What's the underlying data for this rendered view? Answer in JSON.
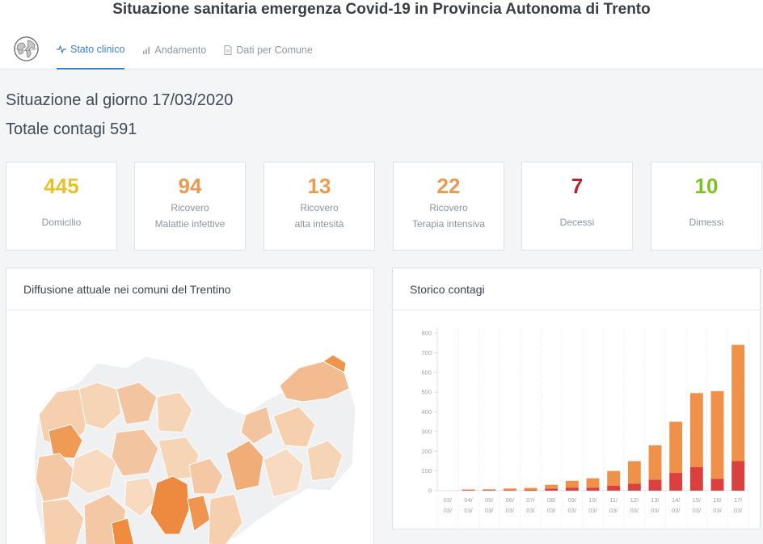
{
  "header": {
    "title": "Situazione sanitaria emergenza Covid-19 in Provincia Autonoma di Trento",
    "tabs": [
      {
        "label": "Stato clinico",
        "icon": "activity-icon",
        "active": true
      },
      {
        "label": "Andamento",
        "icon": "bar-chart-icon",
        "active": false
      },
      {
        "label": "Dati per Comune",
        "icon": "document-icon",
        "active": false
      }
    ]
  },
  "summary": {
    "date_line": "Situazione al giorno 17/03/2020",
    "total_line": "Totale contagi 591"
  },
  "cards": [
    {
      "value": "445",
      "line1": "Domicilio",
      "line2": "",
      "color": "#e8c12a"
    },
    {
      "value": "94",
      "line1": "Ricovero",
      "line2": "Malattie infettive",
      "color": "#eb9a4e"
    },
    {
      "value": "13",
      "line1": "Ricovero",
      "line2": "alta intesità",
      "color": "#eb9a4e"
    },
    {
      "value": "22",
      "line1": "Ricovero",
      "line2": "Terapia intensiva",
      "color": "#eb9a4e"
    },
    {
      "value": "7",
      "line1": "Decessi",
      "line2": "",
      "color": "#b3262c"
    },
    {
      "value": "10",
      "line1": "Dimessi",
      "line2": "",
      "color": "#7ac21e"
    }
  ],
  "map_panel": {
    "title": "Diffusione attuale nei comuni del Trentino"
  },
  "chart_panel": {
    "title": "Storico contagi"
  },
  "chart_data": {
    "type": "bar",
    "stacked": true,
    "categories": [
      "03/03",
      "04/03",
      "05/03",
      "06/03",
      "07/03",
      "08/03",
      "09/03",
      "10/03",
      "11/03",
      "12/03",
      "13/03",
      "14/03",
      "15/03",
      "16/03",
      "17/03"
    ],
    "tick_labels_visible": [
      "03/",
      "04/",
      "05/",
      "06/",
      "07/",
      "08/",
      "09/",
      "10/",
      "11/",
      "12/",
      "13/",
      "14/",
      "15/",
      "16/",
      "17/"
    ],
    "series": [
      {
        "values": [
          0,
          2,
          2,
          3,
          4,
          10,
          15,
          15,
          25,
          35,
          55,
          90,
          120,
          60,
          150
        ],
        "color": "#d9403e"
      },
      {
        "values": [
          0,
          4,
          5,
          8,
          10,
          20,
          35,
          48,
          75,
          115,
          175,
          260,
          375,
          445,
          590
        ],
        "color": "#ef9148"
      }
    ],
    "yticks": [
      0,
      100,
      200,
      300,
      400,
      500,
      600,
      700,
      800
    ],
    "ylim": [
      0,
      800
    ],
    "grid": true
  }
}
